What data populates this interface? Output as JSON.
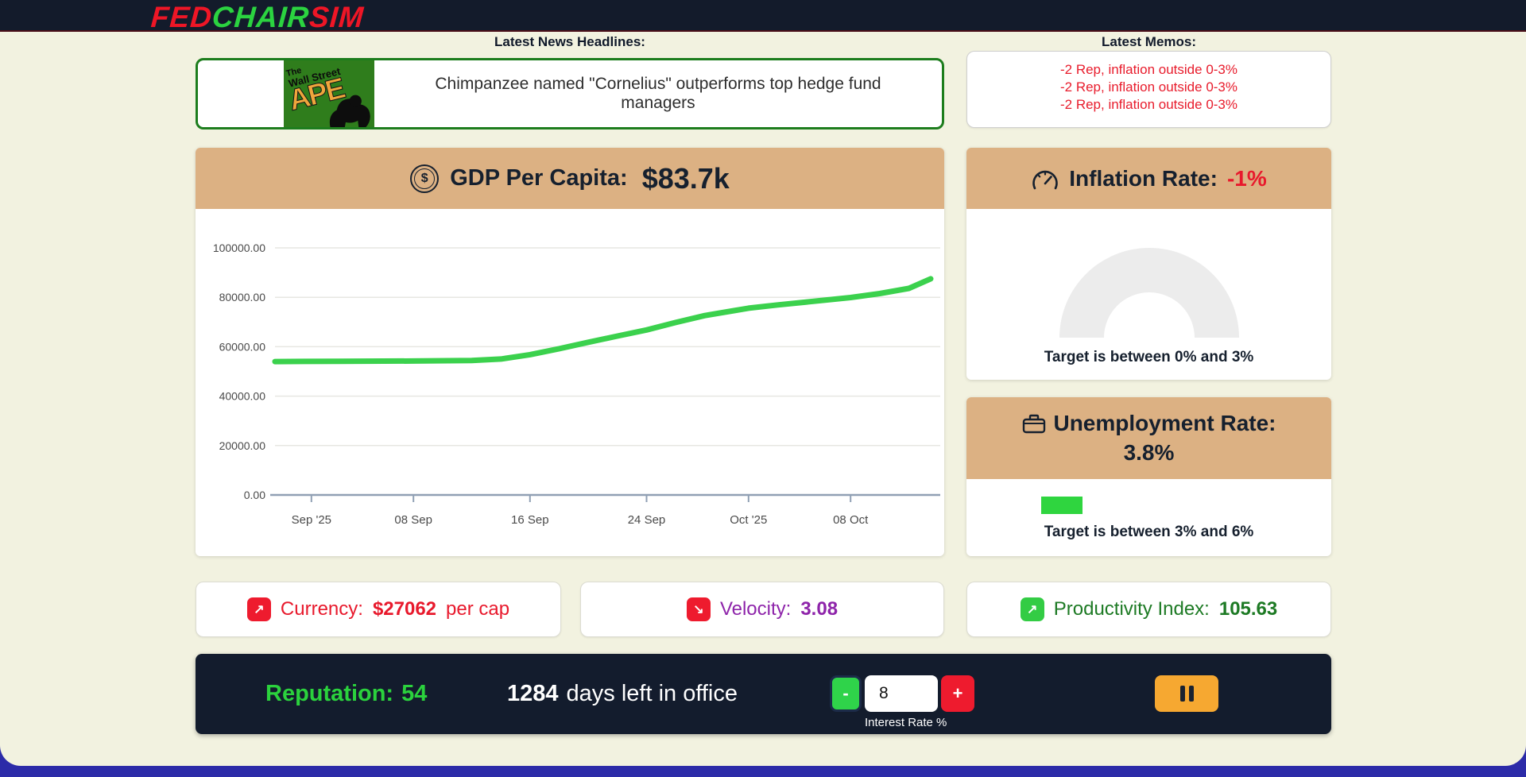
{
  "header": {
    "logo_parts": [
      {
        "text": "FED",
        "color": "#ee1626"
      },
      {
        "text": "CHAIR",
        "color": "#2bd340"
      },
      {
        "text": "SIM",
        "color": "#ee1626"
      }
    ]
  },
  "news": {
    "title": "Latest News Headlines:",
    "headline": "Chimpanzee named \"Cornelius\" outperforms top hedge fund managers",
    "source_logo": {
      "line1": "The",
      "line2": "Wall Street",
      "line3": "APE"
    }
  },
  "memos": {
    "title": "Latest Memos:",
    "items": [
      "-2 Rep, inflation outside 0-3%",
      "-2 Rep, inflation outside 0-3%",
      "-2 Rep, inflation outside 0-3%"
    ]
  },
  "gdp": {
    "title": "GDP Per Capita:",
    "value": "$83.7k",
    "coin_symbol": "$"
  },
  "chart_data": {
    "type": "line",
    "title": "GDP Per Capita",
    "ylabel": "",
    "xlabel": "",
    "ylim": [
      0,
      100000
    ],
    "y_ticks": [
      0,
      20000,
      40000,
      60000,
      80000,
      100000
    ],
    "x_domain_days": [
      0.5,
      45.5
    ],
    "x_ticks": [
      {
        "label": "Sep '25",
        "day": 3
      },
      {
        "label": "08 Sep",
        "day": 10
      },
      {
        "label": "16 Sep",
        "day": 18
      },
      {
        "label": "24 Sep",
        "day": 26
      },
      {
        "label": "Oct '25",
        "day": 33
      },
      {
        "label": "08 Oct",
        "day": 40
      }
    ],
    "points": [
      [
        0.5,
        54000
      ],
      [
        5,
        54100
      ],
      [
        10,
        54200
      ],
      [
        14,
        54400
      ],
      [
        16,
        55000
      ],
      [
        18,
        56800
      ],
      [
        20,
        59200
      ],
      [
        22,
        61800
      ],
      [
        24,
        64300
      ],
      [
        26,
        66800
      ],
      [
        28,
        69800
      ],
      [
        30,
        72600
      ],
      [
        32,
        74600
      ],
      [
        33,
        75600
      ],
      [
        35,
        76900
      ],
      [
        37,
        78100
      ],
      [
        40,
        79900
      ],
      [
        42,
        81500
      ],
      [
        44,
        83600
      ],
      [
        45.5,
        87500
      ]
    ],
    "line_color": "#3bd14d",
    "grid": true,
    "legend": "none"
  },
  "inflation": {
    "title": "Inflation Rate:",
    "value": "-1%",
    "target": "Target is between 0% and 3%",
    "gauge_color": "#ececec"
  },
  "unemployment": {
    "title": "Unemployment Rate:",
    "value": "3.8%",
    "target": "Target is between 3% and 6%",
    "bar_color": "#2fd53f"
  },
  "stats": {
    "currency": {
      "label": "Currency:",
      "value": "$27062",
      "suffix": "per cap",
      "text_color": "#e8192c",
      "icon_bg": "#ee1b2e",
      "arrow": "↗"
    },
    "velocity": {
      "label": "Velocity:",
      "value": "3.08",
      "text_color": "#8e24aa",
      "icon_bg": "#ee1b2e",
      "arrow": "↘"
    },
    "productivity": {
      "label": "Productivity Index:",
      "value": "105.63",
      "text_color": "#1d7a24",
      "icon_bg": "#33cc44",
      "arrow": "↗"
    }
  },
  "controls": {
    "reputation_label": "Reputation:",
    "reputation_value": "54",
    "days_value": "1284",
    "days_label": "days left in office",
    "minus_label": "-",
    "plus_label": "+",
    "interest_value": "8",
    "interest_label": "Interest Rate %"
  }
}
